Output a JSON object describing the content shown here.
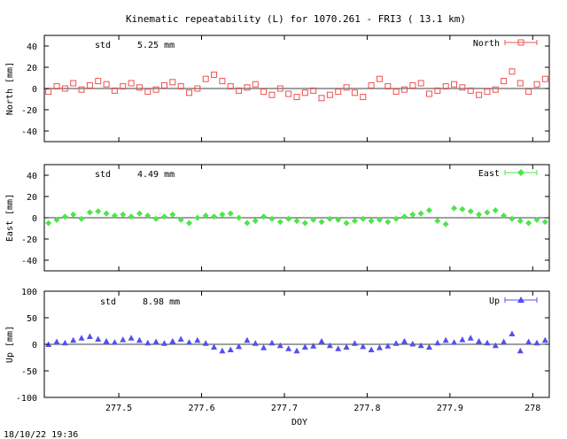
{
  "figure": {
    "title": "Kinematic repeatability (L) for 1070.261 - FRI3  ( 13.1 km)",
    "xlabel": "DOY",
    "timestamp": "18/10/22 19:36"
  },
  "chart_data": [
    {
      "type": "scatter",
      "name": "north",
      "ylabel": "North [mm]",
      "legend": "North",
      "legend_position": "top-right",
      "std_label": "std",
      "std_value": "5.25 mm",
      "color": "#f05050",
      "marker": "square",
      "xlim": [
        277.41,
        278.02
      ],
      "ylim": [
        -50,
        50
      ],
      "yticks": [
        -40,
        -20,
        0,
        20,
        40
      ],
      "xticks": [
        277.5,
        277.6,
        277.7,
        277.8,
        277.9,
        278
      ],
      "xtick_labels": [
        "",
        "",
        "",
        "",
        "",
        ""
      ],
      "series": [
        {
          "name": "North",
          "x": [
            277.415,
            277.425,
            277.435,
            277.445,
            277.455,
            277.465,
            277.475,
            277.485,
            277.495,
            277.505,
            277.515,
            277.525,
            277.535,
            277.545,
            277.555,
            277.565,
            277.575,
            277.585,
            277.595,
            277.605,
            277.615,
            277.625,
            277.635,
            277.645,
            277.655,
            277.665,
            277.675,
            277.685,
            277.695,
            277.705,
            277.715,
            277.725,
            277.735,
            277.745,
            277.755,
            277.765,
            277.775,
            277.785,
            277.795,
            277.805,
            277.815,
            277.825,
            277.835,
            277.845,
            277.855,
            277.865,
            277.875,
            277.885,
            277.895,
            277.905,
            277.915,
            277.925,
            277.935,
            277.945,
            277.955,
            277.965,
            277.975,
            277.985,
            277.995,
            278.005,
            278.015
          ],
          "y": [
            -3,
            2,
            0,
            5,
            -1,
            3,
            7,
            4,
            -2,
            2,
            5,
            1,
            -3,
            -1,
            3,
            6,
            2,
            -4,
            0,
            9,
            13,
            7,
            2,
            -2,
            1,
            4,
            -3,
            -6,
            0,
            -5,
            -8,
            -4,
            -2,
            -9,
            -6,
            -3,
            1,
            -4,
            -8,
            3,
            9,
            2,
            -3,
            -1,
            3,
            5,
            -5,
            -2,
            2,
            4,
            1,
            -2,
            -6,
            -3,
            -1,
            7,
            16,
            5,
            -3,
            4,
            9
          ]
        }
      ]
    },
    {
      "type": "scatter",
      "name": "east",
      "ylabel": "East [mm]",
      "legend": "East",
      "legend_position": "top-right",
      "std_label": "std",
      "std_value": "4.49 mm",
      "color": "#4ce64c",
      "marker": "diamond",
      "xlim": [
        277.41,
        278.02
      ],
      "ylim": [
        -50,
        50
      ],
      "yticks": [
        -40,
        -20,
        0,
        20,
        40
      ],
      "xticks": [
        277.5,
        277.6,
        277.7,
        277.8,
        277.9,
        278
      ],
      "xtick_labels": [
        "",
        "",
        "",
        "",
        "",
        ""
      ],
      "series": [
        {
          "name": "East",
          "x": [
            277.415,
            277.425,
            277.435,
            277.445,
            277.455,
            277.465,
            277.475,
            277.485,
            277.495,
            277.505,
            277.515,
            277.525,
            277.535,
            277.545,
            277.555,
            277.565,
            277.575,
            277.585,
            277.595,
            277.605,
            277.615,
            277.625,
            277.635,
            277.645,
            277.655,
            277.665,
            277.675,
            277.685,
            277.695,
            277.705,
            277.715,
            277.725,
            277.735,
            277.745,
            277.755,
            277.765,
            277.775,
            277.785,
            277.795,
            277.805,
            277.815,
            277.825,
            277.835,
            277.845,
            277.855,
            277.865,
            277.875,
            277.885,
            277.895,
            277.905,
            277.915,
            277.925,
            277.935,
            277.945,
            277.955,
            277.965,
            277.975,
            277.985,
            277.995,
            278.005,
            278.015
          ],
          "y": [
            -5,
            -2,
            1,
            3,
            -1,
            5,
            6,
            4,
            2,
            3,
            1,
            4,
            2,
            -1,
            1,
            3,
            -2,
            -5,
            0,
            2,
            1,
            3,
            4,
            0,
            -5,
            -3,
            1,
            -1,
            -4,
            -1,
            -3,
            -5,
            -2,
            -4,
            -1,
            -2,
            -5,
            -3,
            -1,
            -3,
            -2,
            -4,
            -1,
            1,
            3,
            4,
            7,
            -3,
            -6,
            9,
            8,
            6,
            3,
            5,
            7,
            2,
            -1,
            -3,
            -5,
            -2,
            -4
          ]
        }
      ]
    },
    {
      "type": "scatter",
      "name": "up",
      "ylabel": "Up [mm]",
      "legend": "Up",
      "legend_position": "top-right",
      "std_label": "std",
      "std_value": "8.98 mm",
      "color": "#5050f0",
      "marker": "triangle",
      "xlim": [
        277.41,
        278.02
      ],
      "ylim": [
        -100,
        100
      ],
      "yticks": [
        -100,
        -50,
        0,
        50,
        100
      ],
      "xticks": [
        277.5,
        277.6,
        277.7,
        277.8,
        277.9,
        278
      ],
      "xtick_labels": [
        "277.5",
        "277.6",
        "277.7",
        "277.8",
        "277.9",
        "278"
      ],
      "series": [
        {
          "name": "Up",
          "x": [
            277.415,
            277.425,
            277.435,
            277.445,
            277.455,
            277.465,
            277.475,
            277.485,
            277.495,
            277.505,
            277.515,
            277.525,
            277.535,
            277.545,
            277.555,
            277.565,
            277.575,
            277.585,
            277.595,
            277.605,
            277.615,
            277.625,
            277.635,
            277.645,
            277.655,
            277.665,
            277.675,
            277.685,
            277.695,
            277.705,
            277.715,
            277.725,
            277.735,
            277.745,
            277.755,
            277.765,
            277.775,
            277.785,
            277.795,
            277.805,
            277.815,
            277.825,
            277.835,
            277.845,
            277.855,
            277.865,
            277.875,
            277.885,
            277.895,
            277.905,
            277.915,
            277.925,
            277.935,
            277.945,
            277.955,
            277.965,
            277.975,
            277.985,
            277.995,
            278.005,
            278.015
          ],
          "y": [
            0,
            5,
            3,
            8,
            12,
            15,
            10,
            6,
            4,
            9,
            12,
            8,
            3,
            5,
            2,
            6,
            10,
            4,
            8,
            2,
            -5,
            -12,
            -10,
            -4,
            8,
            2,
            -6,
            3,
            -2,
            -8,
            -12,
            -5,
            -3,
            6,
            -2,
            -8,
            -5,
            2,
            -4,
            -10,
            -6,
            -3,
            2,
            6,
            1,
            -2,
            -5,
            3,
            8,
            4,
            9,
            12,
            6,
            3,
            -2,
            5,
            20,
            -12,
            5,
            3,
            8
          ]
        }
      ]
    }
  ]
}
